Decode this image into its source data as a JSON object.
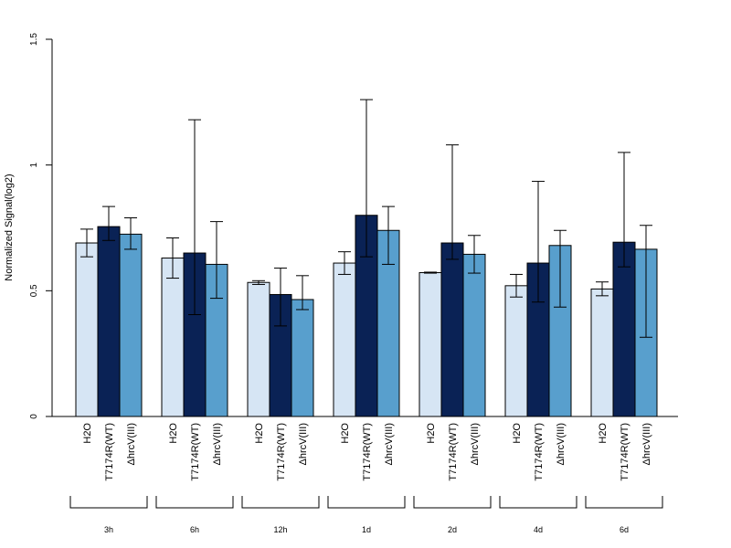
{
  "chart_data": {
    "type": "bar",
    "ylabel": "Normalized Signal(log2)",
    "ylim": [
      0,
      1.5
    ],
    "yticks": [
      0,
      0.5,
      1,
      1.5
    ],
    "ytick_labels": [
      "0",
      "0.5",
      "1",
      "1.5"
    ],
    "categories": [
      "H2O",
      "T7174R(WT)",
      "ΔhrcV(III)"
    ],
    "groups": [
      "3h",
      "6h",
      "12h",
      "1d",
      "2d",
      "4d",
      "6d"
    ],
    "colors": {
      "H2O": "#d6e5f4",
      "T7174R(WT)": "#0a2255",
      "ΔhrcV(III)": "#589fcd"
    },
    "series": [
      {
        "values": [
          0.69,
          0.755,
          0.725
        ],
        "err_low": [
          0.635,
          0.7,
          0.665
        ],
        "err_high": [
          0.745,
          0.835,
          0.79
        ]
      },
      {
        "values": [
          0.63,
          0.65,
          0.605
        ],
        "err_low": [
          0.55,
          0.405,
          0.47
        ],
        "err_high": [
          0.71,
          1.18,
          0.775
        ]
      },
      {
        "values": [
          0.533,
          0.485,
          0.465
        ],
        "err_low": [
          0.525,
          0.36,
          0.425
        ],
        "err_high": [
          0.54,
          0.59,
          0.56
        ]
      },
      {
        "values": [
          0.61,
          0.8,
          0.74
        ],
        "err_low": [
          0.565,
          0.635,
          0.605
        ],
        "err_high": [
          0.655,
          1.26,
          0.835
        ]
      },
      {
        "values": [
          0.572,
          0.69,
          0.645
        ],
        "err_low": [
          0.57,
          0.625,
          0.57
        ],
        "err_high": [
          0.574,
          1.08,
          0.72
        ]
      },
      {
        "values": [
          0.52,
          0.61,
          0.68
        ],
        "err_low": [
          0.475,
          0.455,
          0.435
        ],
        "err_high": [
          0.565,
          0.935,
          0.74
        ]
      },
      {
        "values": [
          0.507,
          0.693,
          0.665
        ],
        "err_low": [
          0.48,
          0.595,
          0.315
        ],
        "err_high": [
          0.535,
          1.05,
          0.76
        ]
      }
    ]
  }
}
